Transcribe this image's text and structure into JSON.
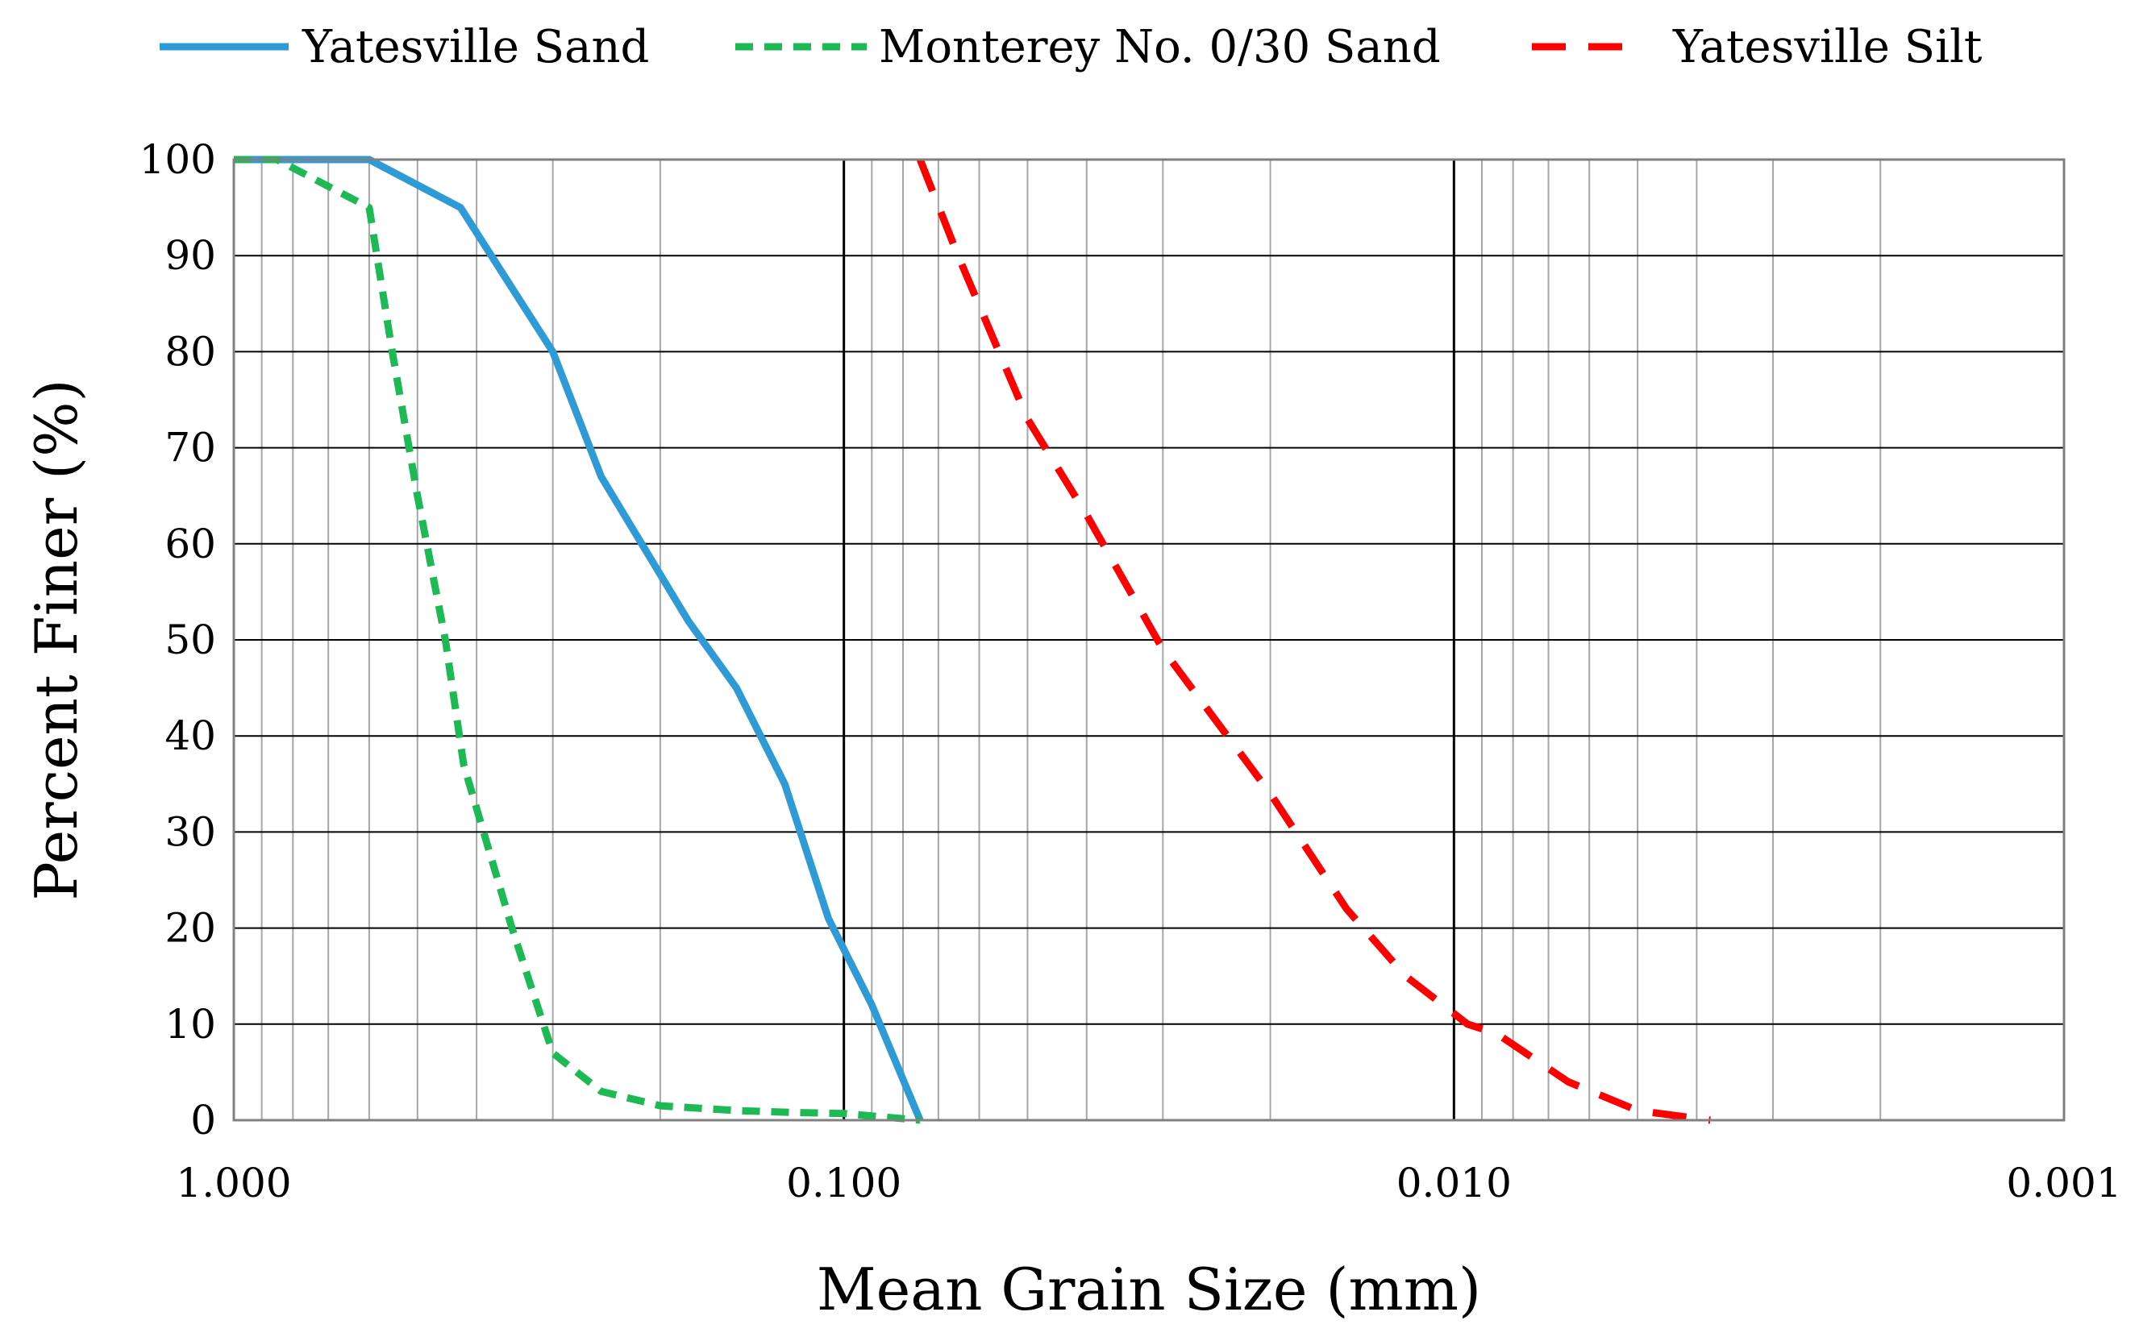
{
  "chart_data": {
    "type": "line",
    "title": "",
    "xlabel": "Mean Grain Size (mm)",
    "ylabel": "Percent Finer (%)",
    "x_scale": "log",
    "x_reversed": true,
    "xlim": [
      1.0,
      0.001
    ],
    "ylim": [
      0,
      100
    ],
    "x_ticks": [
      1.0,
      0.1,
      0.01,
      0.001
    ],
    "x_tick_labels": [
      "1.000",
      "0.100",
      "0.010",
      "0.001"
    ],
    "y_ticks": [
      0,
      10,
      20,
      30,
      40,
      50,
      60,
      70,
      80,
      90,
      100
    ],
    "y_tick_labels": [
      "0",
      "10",
      "20",
      "30",
      "40",
      "50",
      "60",
      "70",
      "80",
      "90",
      "100"
    ],
    "grid": true,
    "legend_position": "top",
    "series": [
      {
        "name": "Yatesville Sand",
        "color": "#2e9bd6",
        "style": "solid",
        "x": [
          1.0,
          0.85,
          0.6,
          0.425,
          0.3,
          0.25,
          0.18,
          0.15,
          0.125,
          0.106,
          0.09,
          0.075
        ],
        "y": [
          100,
          100,
          100,
          95,
          80,
          67,
          52,
          45,
          35,
          21,
          12,
          0
        ]
      },
      {
        "name": "Monterey No. 0/30 Sand",
        "color": "#1db954",
        "style": "dashed",
        "x": [
          1.0,
          0.85,
          0.6,
          0.55,
          0.5,
          0.45,
          0.42,
          0.35,
          0.3,
          0.25,
          0.2,
          0.15,
          0.12,
          0.1,
          0.075
        ],
        "y": [
          100,
          100,
          95,
          80,
          65,
          50,
          37,
          20,
          7,
          3,
          1.5,
          1,
          0.8,
          0.7,
          0
        ]
      },
      {
        "name": "Yatesville Silt",
        "color": "#ff0000",
        "style": "dashed",
        "x": [
          0.075,
          0.065,
          0.05,
          0.04,
          0.03,
          0.02,
          0.015,
          0.012,
          0.0095,
          0.0085,
          0.0065,
          0.005,
          0.0038
        ],
        "y": [
          100,
          90,
          73,
          63,
          49,
          34,
          22,
          15,
          10,
          9,
          4,
          1,
          0
        ]
      }
    ]
  }
}
